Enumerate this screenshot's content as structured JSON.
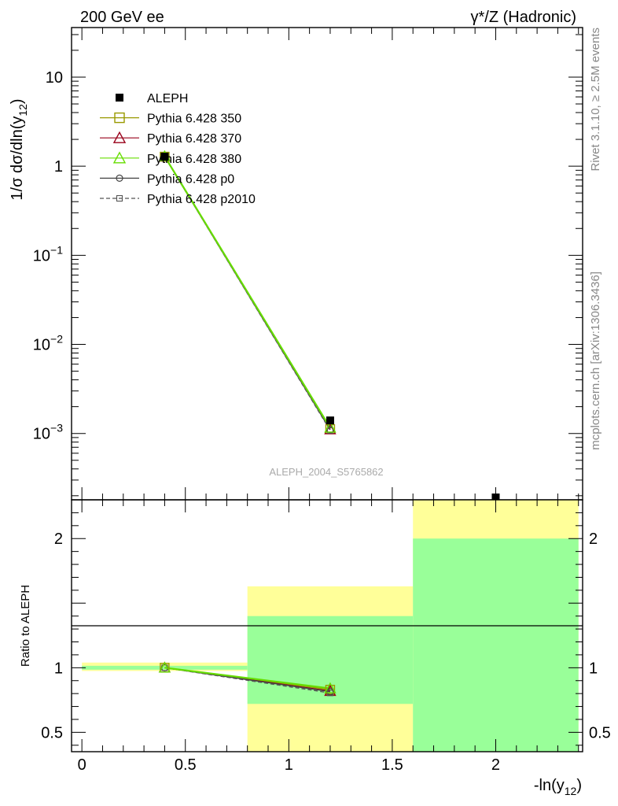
{
  "header": {
    "left": "200 GeV ee",
    "right": "γ*/Z (Hadronic)"
  },
  "side_text": {
    "rivet": "Rivet 3.1.10, ≥ 2.5M events",
    "mcplots": "mcplots.cern.ch [arXiv:1306.3436]"
  },
  "watermark": "ALEPH_2004_S5765862",
  "axes": {
    "top_ylabel_main": "1/σ  dσ/dln(y",
    "top_ylabel_sub": "12",
    "top_ylabel_close": ")",
    "bottom_ylabel": "Ratio to ALEPH",
    "xlabel_main": "-ln(y",
    "xlabel_sub": "12",
    "xlabel_close": ")"
  },
  "ticks": {
    "top_y": [
      {
        "base": "10",
        "exp": "",
        "value": 10
      },
      {
        "base": "1",
        "exp": "",
        "value": 1
      },
      {
        "base": "10",
        "exp": "−1",
        "value": 0.1
      },
      {
        "base": "10",
        "exp": "−2",
        "value": 0.01
      },
      {
        "base": "10",
        "exp": "−3",
        "value": 0.001
      }
    ],
    "bottom_y": [
      {
        "label": "2",
        "value": 2
      },
      {
        "label": "1",
        "value": 1
      },
      {
        "label": "0.5",
        "value": 0.5
      }
    ],
    "x": [
      {
        "label": "0",
        "value": 0
      },
      {
        "label": "0.5",
        "value": 0.5
      },
      {
        "label": "1",
        "value": 1
      },
      {
        "label": "1.5",
        "value": 1.5
      },
      {
        "label": "2",
        "value": 2
      }
    ]
  },
  "legend": [
    {
      "label": "ALEPH",
      "marker": "filled-square",
      "color": "#000000",
      "line": "none"
    },
    {
      "label": "Pythia 6.428 350",
      "marker": "open-square",
      "color": "#999900",
      "line": "solid"
    },
    {
      "label": "Pythia 6.428 370",
      "marker": "open-triangle",
      "color": "#99001a",
      "line": "solid"
    },
    {
      "label": "Pythia 6.428 380",
      "marker": "open-triangle",
      "color": "#66dd00",
      "line": "solid"
    },
    {
      "label": "Pythia 6.428 p0",
      "marker": "open-circle",
      "color": "#444444",
      "line": "solid"
    },
    {
      "label": "Pythia 6.428 p2010",
      "marker": "open-square-small",
      "color": "#555555",
      "line": "dashed"
    }
  ],
  "chart_data": [
    {
      "type": "line",
      "panel": "main",
      "xlabel": "-ln(y12)",
      "ylabel": "1/σ dσ/dln(y12)",
      "xlim": [
        -0.05,
        2.42
      ],
      "ylim": [
        0.00018,
        36
      ],
      "yscale": "log",
      "legend_position": "top-left",
      "x": [
        0.4,
        1.2,
        2.0
      ],
      "series": [
        {
          "name": "ALEPH",
          "values": [
            1.28,
            0.0014,
            0.00012
          ]
        },
        {
          "name": "Pythia 6.428 350",
          "values": [
            1.28,
            0.00112,
            null
          ]
        },
        {
          "name": "Pythia 6.428 370",
          "values": [
            1.28,
            0.00111,
            null
          ]
        },
        {
          "name": "Pythia 6.428 380",
          "values": [
            1.29,
            0.00116,
            null
          ]
        },
        {
          "name": "Pythia 6.428 p0",
          "values": [
            1.28,
            0.0011,
            null
          ]
        },
        {
          "name": "Pythia 6.428 p2010",
          "values": [
            1.28,
            0.00108,
            null
          ]
        }
      ]
    },
    {
      "type": "line",
      "panel": "ratio",
      "xlabel": "-ln(y12)",
      "ylabel": "Ratio to ALEPH",
      "xlim": [
        -0.05,
        2.42
      ],
      "ylim": [
        0.35,
        2.3
      ],
      "bands": [
        {
          "xlow": 0.0,
          "xhigh": 0.8,
          "stat_low": 0.985,
          "stat_high": 1.015,
          "total_low": 0.975,
          "total_high": 1.04
        },
        {
          "xlow": 0.8,
          "xhigh": 1.6,
          "stat_low": 0.72,
          "stat_high": 1.4,
          "total_low": 0.35,
          "total_high": 1.63
        },
        {
          "xlow": 1.6,
          "xhigh": 2.4,
          "stat_low": 0.35,
          "stat_high": 2.0,
          "total_low": 0.35,
          "total_high": 2.3
        }
      ],
      "band_colors": {
        "stat": "#99ff99",
        "total": "#ffff99"
      },
      "x": [
        0.4,
        1.2
      ],
      "series": [
        {
          "name": "Pythia 6.428 350",
          "values": [
            1.0,
            0.83
          ]
        },
        {
          "name": "Pythia 6.428 370",
          "values": [
            1.0,
            0.82
          ]
        },
        {
          "name": "Pythia 6.428 380",
          "values": [
            1.0,
            0.84
          ]
        },
        {
          "name": "Pythia 6.428 p0",
          "values": [
            1.0,
            0.815
          ]
        },
        {
          "name": "Pythia 6.428 p2010",
          "values": [
            1.0,
            0.805
          ]
        }
      ]
    }
  ]
}
